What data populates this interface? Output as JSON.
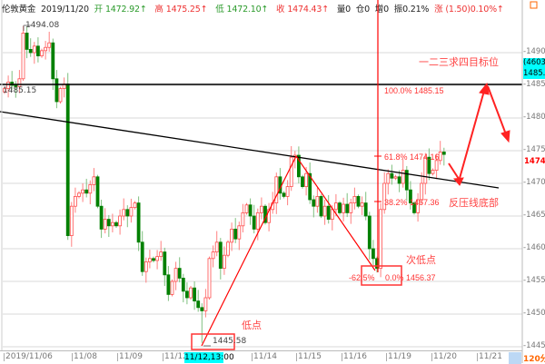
{
  "header": {
    "instrument": "伦敦黄金",
    "date": "2019/11/20",
    "open_label": "开",
    "open": "1472.92↑",
    "high_label": "高",
    "high": "1475.25↑",
    "low_label": "低",
    "low": "1472.10↑",
    "close_label": "收",
    "close": "1474.43↑",
    "volume": "量0",
    "open_interest": "仓0",
    "increase": "增0",
    "amplitude": "振0.21%",
    "change_label": "涨",
    "change": "(1.50)0.10%↑"
  },
  "price_axis": {
    "ticks": [
      "1490.0",
      "1485.0",
      "1480.0",
      "1475.0",
      "1470.0",
      "1465.0",
      "1460.0",
      "1455.0",
      "1450.0",
      "1445.0"
    ],
    "crosshair_count": "(4603)",
    "crosshair_price": "1485.4",
    "last_price": "1474.4",
    "period": "120分钟"
  },
  "time_axis": {
    "labels": [
      "2019/11/06",
      "11/08",
      "11/09",
      "11/12",
      "11/14",
      "11/15",
      "11/16",
      "11/19",
      "11/20",
      "11/21"
    ],
    "crosshair_time": "11/12,13:00"
  },
  "annotations": {
    "high_label": "1494.08",
    "level_label": "1485.15",
    "low_label": "1445.58",
    "fib_100": "100.0% 1485.15",
    "fib_618": "61.8% 1474.16",
    "fib_382": "38.2% 1467.36",
    "fib_neg625": "-62.5%",
    "fib_0": "0.0% 1456.37",
    "target_text": "一二三求四目标位",
    "resistance_text": "反压线底部",
    "second_low_text": "次低点",
    "low_text": "低点"
  },
  "colors": {
    "up": "#ff3333",
    "down": "#008000",
    "accent": "#ff0000",
    "crosshair_bg": "#00ffff"
  },
  "chart_data": {
    "type": "candlestick",
    "first_open": 1484,
    "closes": [
      1484.5,
      1485.5,
      1485,
      1484.8,
      1486,
      1493,
      1490.5,
      1490,
      1491,
      1489.5,
      1490.3,
      1490.8,
      1491.5,
      1486,
      1482.5,
      1484.5,
      1485.2,
      1462,
      1466.5,
      1468,
      1468.5,
      1469,
      1468.5,
      1469.8,
      1471,
      1466.5,
      1463,
      1464.5,
      1463.5,
      1464,
      1463.5,
      1465,
      1466,
      1465,
      1466.3,
      1467,
      1461,
      1456.5,
      1458,
      1458.5,
      1458.2,
      1458.8,
      1459.5,
      1456,
      1453,
      1455,
      1457,
      1455.5,
      1453.5,
      1452.5,
      1454,
      1452,
      1451,
      1450.5,
      1452.5,
      1458.5,
      1459.5,
      1461,
      1457,
      1459,
      1461,
      1463,
      1461.5,
      1463.5,
      1465.5,
      1466.7,
      1465,
      1463,
      1465.5,
      1466.5,
      1464,
      1466,
      1467,
      1471,
      1468.5,
      1468,
      1469.5,
      1474,
      1474.3,
      1471,
      1469.5,
      1471.5,
      1467.5,
      1466.5,
      1468,
      1465,
      1466.5,
      1464.5,
      1466,
      1467,
      1465.5,
      1466.8,
      1465.5,
      1467,
      1468,
      1466.5,
      1467,
      1465,
      1460,
      1458.5,
      1457,
      1466,
      1470,
      1471.5,
      1470.8,
      1471,
      1470,
      1472,
      1469,
      1467,
      1465.5,
      1467.5,
      1470,
      1474,
      1471.5,
      1472,
      1473.5,
      1474.8,
      1474.43
    ],
    "ylim": [
      1444,
      1494.5
    ]
  }
}
